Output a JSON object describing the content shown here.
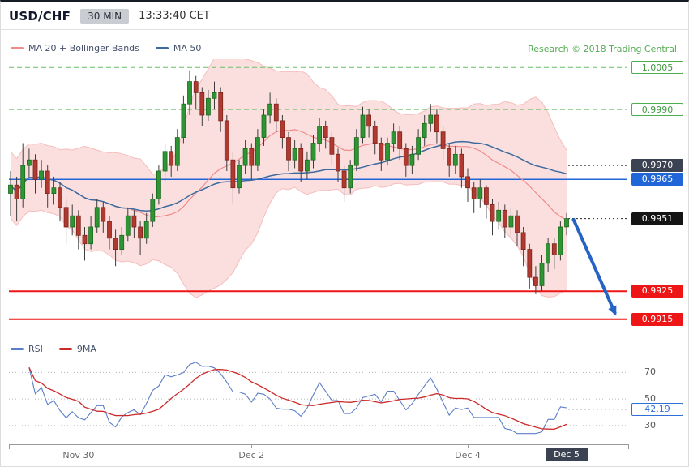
{
  "header": {
    "symbol": "USD/CHF",
    "timeframe": "30 MIN",
    "clock": "13:33:40 CET"
  },
  "main_legend": {
    "ma20_label": "MA 20 + Bollinger Bands",
    "ma50_label": "MA 50",
    "research_credit": "Research © 2018 Trading Central"
  },
  "rsi_legend": {
    "rsi_label": "RSI",
    "ma9_label": "9MA"
  },
  "colors": {
    "up_candle": "#2f9433",
    "up_candle_border": "#1a691e",
    "down_candle": "#b03a30",
    "down_candle_border": "#7c241d",
    "wick": "#3c3c3c",
    "bollinger_fill": "rgba(244,170,170,0.38)",
    "band_edge": "rgba(238,150,150,0.55)",
    "ma20_line": "#ef8b8b",
    "ma50_line": "#3c6a9e",
    "rsi_line": "#5b7fc7",
    "rsi_ma_line": "#cc2a2a",
    "arrow": "#2563c4",
    "level_green": "#6abf69",
    "level_blue": "#2066d9",
    "level_red": "#ed1515",
    "timeframe_badge_bg": "#c9ccd1",
    "research_green": "#52ab52"
  },
  "chart_data": [
    {
      "type": "candlestick",
      "title": "USD/CHF 30 MIN",
      "xlabel": "",
      "ylabel": "",
      "ylim": [
        0.9908,
        1.0008
      ],
      "grid": false,
      "overlays": [
        "MA 20 + Bollinger Bands",
        "MA 50"
      ],
      "bollinger_period": 20,
      "bollinger_mult": 2,
      "ma50_period": 50,
      "x_ticks": [
        {
          "label": "Nov 30",
          "index": 11
        },
        {
          "label": "Dec 2",
          "index": 39
        },
        {
          "label": "Dec 4",
          "index": 74
        },
        {
          "label": "Dec 5",
          "index": 90,
          "highlight": true
        }
      ],
      "levels": [
        {
          "price": 1.0005,
          "label": "1.0005",
          "style": "green-dashed"
        },
        {
          "price": 0.999,
          "label": "0.9990",
          "style": "green-dashed"
        },
        {
          "price": 0.997,
          "label": "0.9970",
          "style": "navy-dotted"
        },
        {
          "price": 0.9965,
          "label": "0.9965",
          "style": "blue-solid"
        },
        {
          "price": 0.9951,
          "label": "0.9951",
          "style": "black-dotted"
        },
        {
          "price": 0.9925,
          "label": "0.9925",
          "style": "red-solid"
        },
        {
          "price": 0.9915,
          "label": "0.9915",
          "style": "red-solid"
        }
      ],
      "forecast_arrow": {
        "from_index": 90,
        "from_price": 0.9951,
        "to_price": 0.9917
      },
      "candles_ohlc": [
        [
          0.996,
          0.9968,
          0.9952,
          0.9963
        ],
        [
          0.9963,
          0.9966,
          0.995,
          0.9958
        ],
        [
          0.9958,
          0.9978,
          0.9955,
          0.997
        ],
        [
          0.997,
          0.9976,
          0.9966,
          0.9972
        ],
        [
          0.9972,
          0.9974,
          0.996,
          0.9965
        ],
        [
          0.9965,
          0.9972,
          0.9962,
          0.9968
        ],
        [
          0.9968,
          0.997,
          0.9955,
          0.996
        ],
        [
          0.996,
          0.9966,
          0.9956,
          0.9962
        ],
        [
          0.9962,
          0.9964,
          0.995,
          0.9955
        ],
        [
          0.9955,
          0.9958,
          0.9942,
          0.9948
        ],
        [
          0.9948,
          0.9956,
          0.9945,
          0.9952
        ],
        [
          0.9952,
          0.9954,
          0.994,
          0.9945
        ],
        [
          0.9945,
          0.9948,
          0.9936,
          0.9942
        ],
        [
          0.9942,
          0.9952,
          0.994,
          0.9948
        ],
        [
          0.9948,
          0.9958,
          0.9946,
          0.9955
        ],
        [
          0.9955,
          0.9957,
          0.9946,
          0.995
        ],
        [
          0.995,
          0.9952,
          0.994,
          0.9944
        ],
        [
          0.9944,
          0.9947,
          0.9934,
          0.994
        ],
        [
          0.994,
          0.9948,
          0.9938,
          0.9945
        ],
        [
          0.9945,
          0.9955,
          0.9943,
          0.9952
        ],
        [
          0.9952,
          0.9954,
          0.9944,
          0.9948
        ],
        [
          0.9948,
          0.995,
          0.9938,
          0.9944
        ],
        [
          0.9944,
          0.9953,
          0.9942,
          0.995
        ],
        [
          0.995,
          0.996,
          0.9948,
          0.9958
        ],
        [
          0.9958,
          0.997,
          0.9956,
          0.9968
        ],
        [
          0.9968,
          0.9978,
          0.9964,
          0.9975
        ],
        [
          0.9975,
          0.9977,
          0.9966,
          0.997
        ],
        [
          0.997,
          0.9983,
          0.9968,
          0.998
        ],
        [
          0.998,
          0.9995,
          0.9978,
          0.9992
        ],
        [
          0.9992,
          1.0004,
          0.9988,
          1.0
        ],
        [
          1.0,
          1.0002,
          0.999,
          0.9996
        ],
        [
          0.9996,
          0.9998,
          0.9984,
          0.9988
        ],
        [
          0.9988,
          0.9997,
          0.9986,
          0.9994
        ],
        [
          0.9994,
          1.0,
          0.999,
          0.9996
        ],
        [
          0.9996,
          0.9998,
          0.9982,
          0.9986
        ],
        [
          0.9986,
          0.9988,
          0.9968,
          0.9972
        ],
        [
          0.9972,
          0.9975,
          0.9956,
          0.9962
        ],
        [
          0.9962,
          0.9972,
          0.996,
          0.997
        ],
        [
          0.997,
          0.9979,
          0.9967,
          0.9976
        ],
        [
          0.9976,
          0.9978,
          0.9965,
          0.997
        ],
        [
          0.997,
          0.9983,
          0.9968,
          0.998
        ],
        [
          0.998,
          0.999,
          0.9977,
          0.9988
        ],
        [
          0.9988,
          0.9996,
          0.9985,
          0.9992
        ],
        [
          0.9992,
          0.9994,
          0.9982,
          0.9986
        ],
        [
          0.9986,
          0.9988,
          0.9976,
          0.998
        ],
        [
          0.998,
          0.9982,
          0.9968,
          0.9972
        ],
        [
          0.9972,
          0.9979,
          0.9969,
          0.9976
        ],
        [
          0.9976,
          0.9978,
          0.9964,
          0.9968
        ],
        [
          0.9968,
          0.9975,
          0.9965,
          0.9972
        ],
        [
          0.9972,
          0.9981,
          0.9969,
          0.9978
        ],
        [
          0.9978,
          0.9987,
          0.9975,
          0.9984
        ],
        [
          0.9984,
          0.9986,
          0.9976,
          0.998
        ],
        [
          0.998,
          0.9982,
          0.997,
          0.9974
        ],
        [
          0.9974,
          0.9976,
          0.9964,
          0.9968
        ],
        [
          0.9968,
          0.997,
          0.9957,
          0.9962
        ],
        [
          0.9962,
          0.9972,
          0.996,
          0.997
        ],
        [
          0.997,
          0.9983,
          0.9968,
          0.998
        ],
        [
          0.998,
          0.9991,
          0.9978,
          0.9988
        ],
        [
          0.9988,
          0.999,
          0.998,
          0.9984
        ],
        [
          0.9984,
          0.9986,
          0.9974,
          0.9978
        ],
        [
          0.9978,
          0.998,
          0.9968,
          0.9972
        ],
        [
          0.9972,
          0.998,
          0.997,
          0.9978
        ],
        [
          0.9978,
          0.9985,
          0.9975,
          0.9982
        ],
        [
          0.9982,
          0.9984,
          0.9972,
          0.9976
        ],
        [
          0.9976,
          0.9978,
          0.9966,
          0.997
        ],
        [
          0.997,
          0.9977,
          0.9967,
          0.9974
        ],
        [
          0.9974,
          0.9983,
          0.9972,
          0.998
        ],
        [
          0.998,
          0.9988,
          0.9977,
          0.9985
        ],
        [
          0.9985,
          0.9992,
          0.9982,
          0.9988
        ],
        [
          0.9988,
          0.999,
          0.9978,
          0.9982
        ],
        [
          0.9982,
          0.9984,
          0.9972,
          0.9976
        ],
        [
          0.9976,
          0.9978,
          0.9966,
          0.997
        ],
        [
          0.997,
          0.9977,
          0.9967,
          0.9974
        ],
        [
          0.9974,
          0.9976,
          0.9962,
          0.9966
        ],
        [
          0.9966,
          0.9969,
          0.9957,
          0.9962
        ],
        [
          0.9962,
          0.9964,
          0.9953,
          0.9958
        ],
        [
          0.9958,
          0.9965,
          0.9955,
          0.9962
        ],
        [
          0.9962,
          0.9963,
          0.9951,
          0.9956
        ],
        [
          0.9956,
          0.9958,
          0.9945,
          0.995
        ],
        [
          0.995,
          0.9957,
          0.9947,
          0.9954
        ],
        [
          0.9954,
          0.9956,
          0.9944,
          0.9948
        ],
        [
          0.9948,
          0.9955,
          0.9945,
          0.9952
        ],
        [
          0.9952,
          0.9954,
          0.9941,
          0.9946
        ],
        [
          0.9946,
          0.9948,
          0.9934,
          0.994
        ],
        [
          0.994,
          0.9942,
          0.9926,
          0.993
        ],
        [
          0.993,
          0.9934,
          0.9924,
          0.9927
        ],
        [
          0.9927,
          0.9938,
          0.9925,
          0.9935
        ],
        [
          0.9935,
          0.9944,
          0.9932,
          0.9942
        ],
        [
          0.9942,
          0.9944,
          0.9933,
          0.9938
        ],
        [
          0.9938,
          0.995,
          0.9936,
          0.9948
        ],
        [
          0.9948,
          0.9953,
          0.9945,
          0.9951
        ]
      ]
    },
    {
      "type": "line",
      "panel": "oscillator",
      "series": [
        {
          "name": "RSI",
          "period": 14
        },
        {
          "name": "9MA",
          "period": 9
        }
      ],
      "ylim": [
        22,
        80
      ],
      "y_ticks": [
        70,
        50,
        30
      ],
      "grid": true,
      "last_value": "42.19"
    }
  ]
}
